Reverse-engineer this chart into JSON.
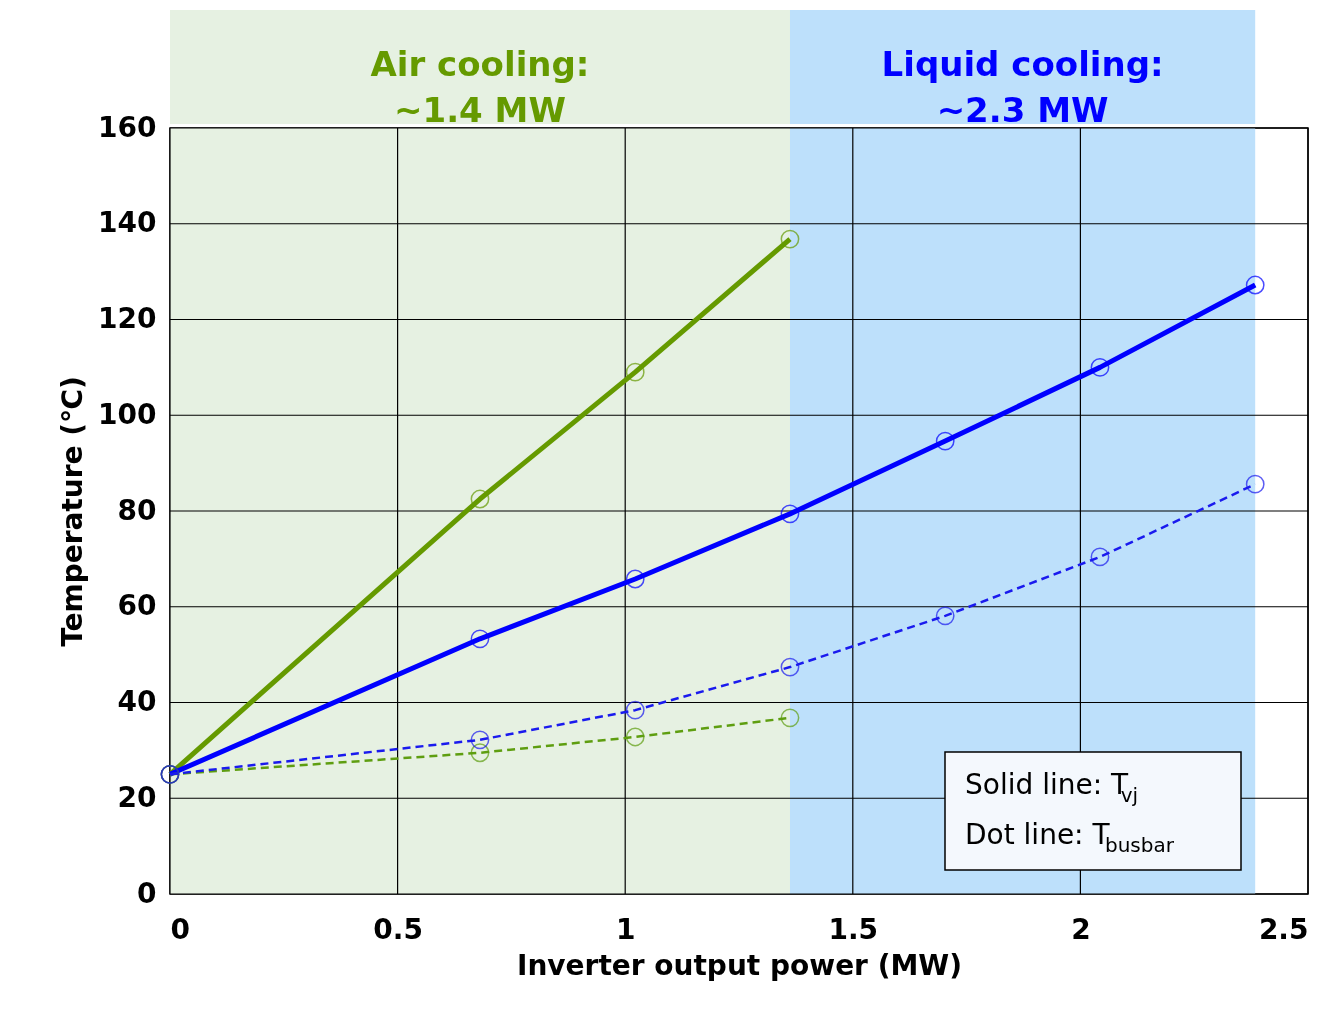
{
  "chart_data": {
    "type": "line",
    "xlabel": "Inverter output power (MW)",
    "ylabel": "Temperature (℃)",
    "xlim": [
      0,
      2.5
    ],
    "xticks": [
      0,
      0.5,
      1,
      1.5,
      2,
      2.5
    ],
    "ylim": [
      0,
      160
    ],
    "yticks": [
      0,
      20,
      40,
      60,
      80,
      100,
      120,
      140,
      160
    ],
    "grid": true,
    "marker": "circle",
    "series": [
      {
        "color": "#659a00",
        "line_style": "solid",
        "x": [
          0,
          0.681,
          1.022,
          1.362
        ],
        "values": [
          25,
          82.5,
          109,
          136.8
        ]
      },
      {
        "color": "#0000ff",
        "line_style": "solid",
        "x": [
          0,
          0.681,
          1.022,
          1.362,
          1.703,
          2.043,
          2.384
        ],
        "values": [
          25,
          53.3,
          65.8,
          79.4,
          94.6,
          110,
          127.2
        ]
      },
      {
        "color": "#5e9e10",
        "line_style": "dashed",
        "x": [
          0,
          0.681,
          1.022,
          1.362
        ],
        "values": [
          25,
          29.5,
          32.8,
          36.8
        ]
      },
      {
        "color": "#1a1aee",
        "line_style": "dashed",
        "x": [
          0,
          0.681,
          1.022,
          1.362,
          1.703,
          2.043,
          2.384
        ],
        "values": [
          25,
          32.2,
          38.4,
          47.4,
          58.1,
          70.4,
          85.6
        ]
      }
    ],
    "bands": [
      {
        "axis": "x",
        "from": 0,
        "to": 1.362,
        "label": "Air cooling:\n~1.4 MW",
        "color": "#e6f1e2"
      },
      {
        "axis": "x",
        "from": 1.362,
        "to": 2.384,
        "label": "Liquid cooling:\n~2.3 MW",
        "color": "#bde0fb"
      }
    ],
    "annotations": [
      "Solid line: T$_{vj}$",
      "Dot line: T$_{busbar}$"
    ]
  }
}
